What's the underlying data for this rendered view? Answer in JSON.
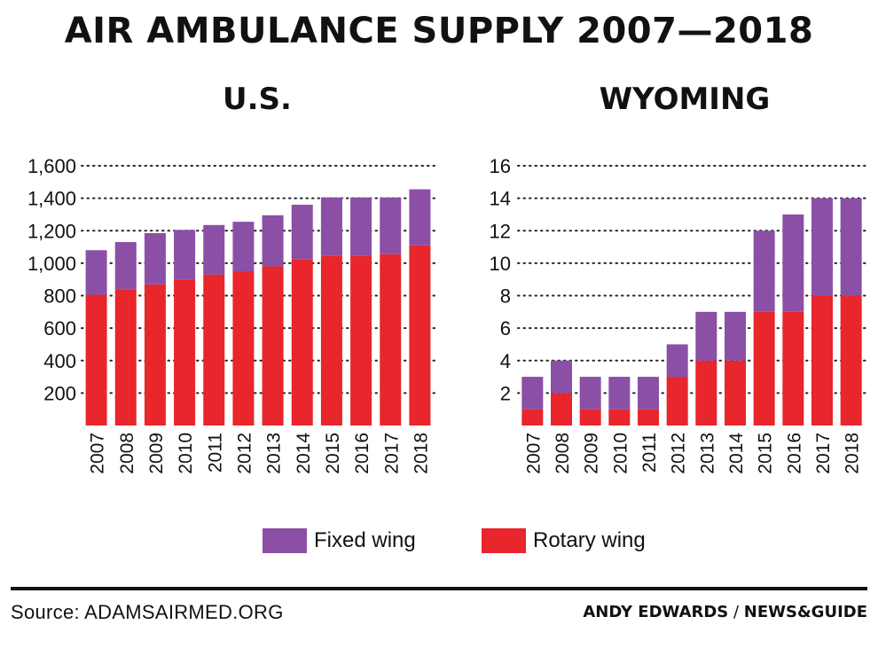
{
  "title": "AIR AMBULANCE SUPPLY 2007—2018",
  "legend": [
    {
      "label": "Fixed wing",
      "color": "#8b4fa6"
    },
    {
      "label": "Rotary wing",
      "color": "#e8262b"
    }
  ],
  "source": "Source: ADAMSAIRMED.ORG",
  "credit": {
    "author": "ANDY EDWARDS",
    "separator": " / ",
    "outlet": "NEWS&GUIDE"
  },
  "chart_data": [
    {
      "type": "bar",
      "stacked": true,
      "title": "U.S.",
      "categories": [
        "2007",
        "2008",
        "2009",
        "2010",
        "2011",
        "2012",
        "2013",
        "2014",
        "2015",
        "2016",
        "2017",
        "2018"
      ],
      "ylim": [
        0,
        1600
      ],
      "yticks": [
        200,
        400,
        600,
        800,
        1000,
        1200,
        1400,
        1600
      ],
      "ytick_labels": [
        "200",
        "400",
        "600",
        "800",
        "1,000",
        "1,200",
        "1,400",
        "1,600"
      ],
      "grid": true,
      "series": [
        {
          "name": "Rotary wing",
          "color": "#e8262b",
          "values": [
            805,
            840,
            870,
            900,
            930,
            950,
            980,
            1025,
            1045,
            1045,
            1055,
            1110
          ]
        },
        {
          "name": "Fixed wing",
          "color": "#8b4fa6",
          "values": [
            275,
            290,
            315,
            305,
            305,
            305,
            315,
            335,
            360,
            360,
            350,
            345
          ]
        }
      ]
    },
    {
      "type": "bar",
      "stacked": true,
      "title": "WYOMING",
      "categories": [
        "2007",
        "2008",
        "2009",
        "2010",
        "2011",
        "2012",
        "2013",
        "2014",
        "2015",
        "2016",
        "2017",
        "2018"
      ],
      "ylim": [
        0,
        16
      ],
      "yticks": [
        2,
        4,
        6,
        8,
        10,
        12,
        14,
        16
      ],
      "ytick_labels": [
        "2",
        "4",
        "6",
        "8",
        "10",
        "12",
        "14",
        "16"
      ],
      "grid": true,
      "series": [
        {
          "name": "Rotary wing",
          "color": "#e8262b",
          "values": [
            1,
            2,
            1,
            1,
            1,
            3,
            4,
            4,
            7,
            7,
            8,
            8
          ]
        },
        {
          "name": "Fixed wing",
          "color": "#8b4fa6",
          "values": [
            2,
            2,
            2,
            2,
            2,
            2,
            3,
            3,
            5,
            6,
            6,
            6
          ]
        }
      ]
    }
  ]
}
